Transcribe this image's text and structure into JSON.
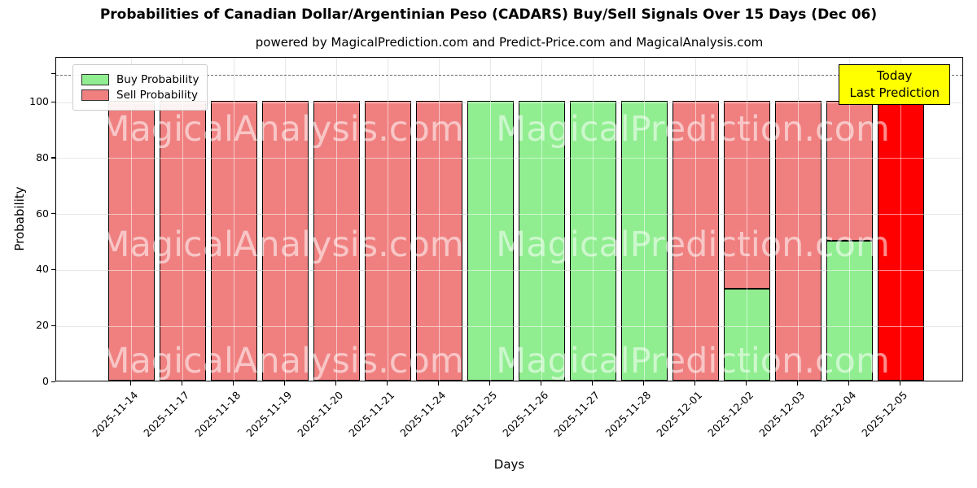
{
  "title": "Probabilities of Canadian Dollar/Argentinian Peso (CADARS) Buy/Sell Signals Over 15 Days (Dec 06)",
  "subtitle": "powered by MagicalPrediction.com and Predict-Price.com and MagicalAnalysis.com",
  "legend": {
    "buy_label": "Buy Probability",
    "sell_label": "Sell Probability"
  },
  "annotation_box": {
    "line1": "Today",
    "line2": "Last Prediction",
    "bg_color": "#ffff00"
  },
  "watermarks": {
    "left_text": "MagicalAnalysis.com",
    "right_text": "MagicalPrediction.com"
  },
  "chart_data": {
    "type": "bar",
    "stacked": true,
    "title": "Probabilities of Canadian Dollar/Argentinian Peso (CADARS) Buy/Sell Signals Over 15 Days (Dec 06)",
    "xlabel": "Days",
    "ylabel": "Probability",
    "ylim": [
      0,
      116
    ],
    "yticks": [
      0,
      20,
      40,
      60,
      80,
      100
    ],
    "extra_ytick_unlabeled": 110,
    "dashed_line_y": 110,
    "grid": true,
    "legend_position": "upper left",
    "categories": [
      "2025-11-14",
      "2025-11-17",
      "2025-11-18",
      "2025-11-19",
      "2025-11-20",
      "2025-11-21",
      "2025-11-24",
      "2025-11-25",
      "2025-11-26",
      "2025-11-27",
      "2025-11-28",
      "2025-12-01",
      "2025-12-02",
      "2025-12-03",
      "2025-12-04",
      "2025-12-05"
    ],
    "series": [
      {
        "name": "Buy Probability",
        "color": "#90ee90",
        "values": [
          0,
          0,
          0,
          0,
          0,
          0,
          0,
          100,
          100,
          100,
          100,
          0,
          33,
          0,
          50,
          0
        ]
      },
      {
        "name": "Sell Probability",
        "color": "#f08080",
        "values": [
          100,
          100,
          100,
          100,
          100,
          100,
          100,
          0,
          0,
          0,
          0,
          100,
          67,
          100,
          50,
          100
        ]
      }
    ],
    "today_index": 15,
    "today_sell_color": "#ff0000"
  },
  "colors": {
    "buy": "#90ee90",
    "sell": "#f08080",
    "today_sell": "#ff0000",
    "grid": "#c9c9c9",
    "dashed_line": "#6e6e6e",
    "annotation_bg": "#ffff00"
  }
}
